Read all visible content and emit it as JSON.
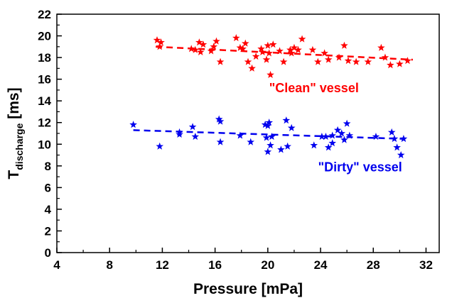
{
  "chart_data": {
    "type": "scatter",
    "xlabel": "Pressure [mPa]",
    "ylabel_main": "T",
    "ylabel_sub": "discharge",
    "ylabel_unit": " [ms]",
    "xlim": [
      4,
      33
    ],
    "ylim": [
      0,
      22
    ],
    "xticks": [
      "4",
      "8",
      "12",
      "16",
      "20",
      "24",
      "28",
      "32"
    ],
    "yticks": [
      "0",
      "2",
      "4",
      "6",
      "8",
      "10",
      "12",
      "14",
      "16",
      "18",
      "20",
      "22"
    ],
    "grid": false,
    "series": [
      {
        "color": "#ff0000",
        "marker": "star",
        "trend": {
          "x": [
            11.5,
            31.0
          ],
          "y": [
            19.0,
            17.8
          ]
        },
        "points": [
          [
            11.6,
            19.6
          ],
          [
            11.8,
            19.0
          ],
          [
            11.9,
            19.4
          ],
          [
            14.2,
            18.8
          ],
          [
            14.5,
            18.7
          ],
          [
            14.8,
            19.4
          ],
          [
            14.9,
            18.5
          ],
          [
            15.1,
            19.2
          ],
          [
            15.7,
            18.6
          ],
          [
            15.9,
            19.0
          ],
          [
            16.1,
            19.5
          ],
          [
            16.4,
            17.6
          ],
          [
            17.6,
            19.8
          ],
          [
            17.9,
            18.9
          ],
          [
            18.1,
            18.8
          ],
          [
            18.3,
            19.3
          ],
          [
            18.5,
            17.6
          ],
          [
            18.8,
            17.0
          ],
          [
            19.1,
            18.1
          ],
          [
            19.5,
            18.8
          ],
          [
            19.6,
            18.5
          ],
          [
            19.9,
            17.8
          ],
          [
            20.0,
            19.1
          ],
          [
            20.1,
            18.4
          ],
          [
            20.2,
            16.4
          ],
          [
            20.4,
            19.2
          ],
          [
            20.9,
            18.6
          ],
          [
            21.2,
            17.6
          ],
          [
            21.7,
            18.7
          ],
          [
            21.8,
            18.4
          ],
          [
            22.0,
            18.9
          ],
          [
            22.3,
            18.7
          ],
          [
            22.6,
            19.7
          ],
          [
            23.4,
            18.7
          ],
          [
            23.8,
            17.6
          ],
          [
            24.3,
            18.4
          ],
          [
            24.6,
            17.8
          ],
          [
            25.4,
            18.0
          ],
          [
            25.8,
            19.1
          ],
          [
            26.1,
            17.7
          ],
          [
            26.7,
            17.6
          ],
          [
            27.6,
            17.6
          ],
          [
            28.6,
            18.9
          ],
          [
            28.9,
            18.0
          ],
          [
            29.3,
            17.3
          ],
          [
            30.0,
            17.4
          ],
          [
            30.6,
            17.7
          ]
        ]
      },
      {
        "color": "#0000ee",
        "marker": "star",
        "trend": {
          "x": [
            9.8,
            30.2
          ],
          "y": [
            11.3,
            10.5
          ]
        },
        "points": [
          [
            9.8,
            11.8
          ],
          [
            11.8,
            9.8
          ],
          [
            13.3,
            11.1
          ],
          [
            13.3,
            10.9
          ],
          [
            14.3,
            11.6
          ],
          [
            14.5,
            10.7
          ],
          [
            16.3,
            12.3
          ],
          [
            16.4,
            12.1
          ],
          [
            16.4,
            10.2
          ],
          [
            17.9,
            10.8
          ],
          [
            18.7,
            10.2
          ],
          [
            19.8,
            11.8
          ],
          [
            19.9,
            10.6
          ],
          [
            20.0,
            9.3
          ],
          [
            20.0,
            11.7
          ],
          [
            20.1,
            12.0
          ],
          [
            20.2,
            9.9
          ],
          [
            20.3,
            10.7
          ],
          [
            21.0,
            9.5
          ],
          [
            21.4,
            12.2
          ],
          [
            21.5,
            9.8
          ],
          [
            21.8,
            11.5
          ],
          [
            23.5,
            9.9
          ],
          [
            24.1,
            10.7
          ],
          [
            24.4,
            10.7
          ],
          [
            24.6,
            9.7
          ],
          [
            24.9,
            10.8
          ],
          [
            24.9,
            10.1
          ],
          [
            25.3,
            11.3
          ],
          [
            25.6,
            11.0
          ],
          [
            25.8,
            10.4
          ],
          [
            26.0,
            11.9
          ],
          [
            26.2,
            10.8
          ],
          [
            28.2,
            10.7
          ],
          [
            29.4,
            11.1
          ],
          [
            29.6,
            10.5
          ],
          [
            29.8,
            9.7
          ],
          [
            30.1,
            9.0
          ],
          [
            30.3,
            10.5
          ]
        ]
      }
    ],
    "annotations": [
      {
        "text": "\"Clean\" vessel",
        "color": "#ff0000",
        "x": 23.5,
        "y": 14.8
      },
      {
        "text": "\"Dirty\" vessel",
        "color": "#0000ee",
        "x": 27.0,
        "y": 7.5
      }
    ]
  }
}
